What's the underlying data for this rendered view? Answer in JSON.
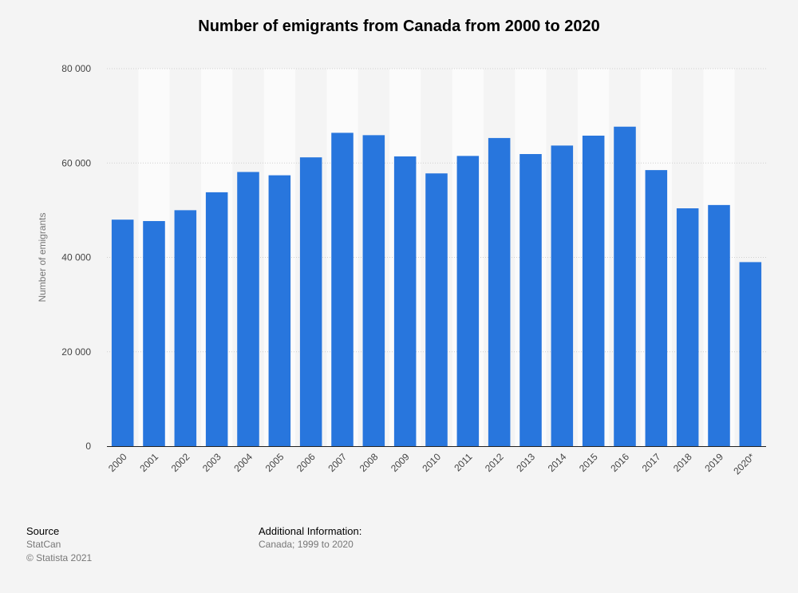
{
  "chart_data": {
    "type": "bar",
    "title": "Number of emigrants from Canada from 2000 to 2020",
    "xlabel": "",
    "ylabel": "Number of emigrants",
    "categories": [
      "2000",
      "2001",
      "2002",
      "2003",
      "2004",
      "2005",
      "2006",
      "2007",
      "2008",
      "2009",
      "2010",
      "2011",
      "2012",
      "2013",
      "2014",
      "2015",
      "2016",
      "2017",
      "2018",
      "2019",
      "2020*"
    ],
    "values": [
      48000,
      47700,
      50000,
      53800,
      58100,
      57400,
      61200,
      66400,
      65900,
      61400,
      57800,
      61500,
      65300,
      61900,
      63700,
      65800,
      67700,
      58500,
      50400,
      51100,
      39000
    ],
    "ylim": [
      0,
      80000
    ],
    "yticks": [
      0,
      20000,
      40000,
      60000,
      80000
    ],
    "ytick_labels": [
      "0",
      "20 000",
      "40 000",
      "60 000",
      "80 000"
    ],
    "grid": true,
    "bar_color": "#2876dd"
  },
  "footer": {
    "source_heading": "Source",
    "source_name": "StatCan",
    "copyright": "© Statista 2021",
    "info_heading": "Additional Information:",
    "info_text": "Canada; 1999 to 2020"
  }
}
